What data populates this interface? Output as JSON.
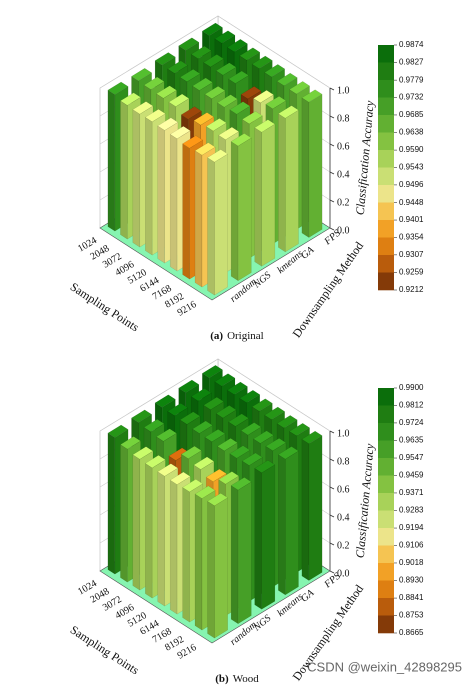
{
  "chart_data": [
    {
      "type": "bar3d",
      "panel": "(a)",
      "title": "Original",
      "x_label": "Sampling Points",
      "y_label": "Downsampling Method",
      "z_label": "Classification Accuracy",
      "categories": [
        "1024",
        "2048",
        "3072",
        "4096",
        "5120",
        "6144",
        "7168",
        "8192",
        "9216"
      ],
      "series": [
        {
          "name": "random",
          "values": [
            0.975,
            0.955,
            0.95,
            0.952,
            0.948,
            0.945,
            0.935,
            0.942,
            0.95
          ]
        },
        {
          "name": "NGS",
          "values": [
            0.97,
            0.965,
            0.96,
            0.958,
            0.925,
            0.94,
            0.955,
            0.95,
            0.962
          ]
        },
        {
          "name": "kmeans",
          "values": [
            0.98,
            0.978,
            0.975,
            0.97,
            0.968,
            0.965,
            0.972,
            0.96,
            0.958
          ]
        },
        {
          "name": "GA",
          "values": [
            0.982,
            0.98,
            0.978,
            0.976,
            0.974,
            0.921,
            0.95,
            0.965,
            0.955
          ]
        },
        {
          "name": "FPS",
          "values": [
            0.985,
            0.987,
            0.983,
            0.98,
            0.978,
            0.975,
            0.97,
            0.968,
            0.966
          ]
        }
      ],
      "zlim": [
        0,
        1
      ],
      "zticks": [
        {
          "value": 0,
          "label": "0.0"
        },
        0.2,
        0.4,
        0.6,
        0.8,
        {
          "value": 1,
          "label": "1.0"
        }
      ],
      "colorbar_ticks": [
        0.9874,
        0.9827,
        0.9779,
        0.9732,
        0.9685,
        0.9638,
        {
          "value": 0.959,
          "label": "0.9590"
        },
        0.9543,
        0.9496,
        0.9448,
        0.9401,
        0.9354,
        0.9307,
        0.9259,
        0.9212
      ],
      "colormap": [
        "#0b6e0b",
        "#1f7d12",
        "#2f8e1c",
        "#469f27",
        "#62b032",
        "#84c241",
        "#a8d259",
        "#cadf74",
        "#ece48a",
        "#f5c452",
        "#f2a126",
        "#de7f12",
        "#b95c0c",
        "#843a08"
      ]
    },
    {
      "type": "bar3d",
      "panel": "(b)",
      "title": "Wood",
      "x_label": "Sampling Points",
      "y_label": "Downsampling Method",
      "z_label": "Classification Accuracy",
      "categories": [
        "1024",
        "2048",
        "3072",
        "4096",
        "5120",
        "6144",
        "7168",
        "8192",
        "9216"
      ],
      "series": [
        {
          "name": "random",
          "values": [
            0.975,
            0.95,
            0.935,
            0.93,
            0.928,
            0.925,
            0.93,
            0.94,
            0.945
          ]
        },
        {
          "name": "NGS",
          "values": [
            0.98,
            0.97,
            0.96,
            0.88,
            0.95,
            0.93,
            0.9,
            0.94,
            0.955
          ]
        },
        {
          "name": "kmeans",
          "values": [
            0.985,
            0.982,
            0.978,
            0.97,
            0.968,
            0.96,
            0.965,
            0.97,
            0.975
          ]
        },
        {
          "name": "GA",
          "values": [
            0.988,
            0.985,
            0.98,
            0.978,
            0.975,
            0.97,
            0.968,
            0.972,
            0.97
          ]
        },
        {
          "name": "FPS",
          "values": [
            0.99,
            0.988,
            0.985,
            0.984,
            0.98,
            0.978,
            0.975,
            0.976,
            0.977
          ]
        }
      ],
      "zlim": [
        0,
        1
      ],
      "zticks": [
        {
          "value": 0,
          "label": "0.0"
        },
        0.2,
        0.4,
        0.6,
        0.8,
        {
          "value": 1,
          "label": "1.0"
        }
      ],
      "colorbar_ticks": [
        {
          "value": 0.99,
          "label": "0.9900"
        },
        0.9812,
        0.9724,
        0.9635,
        0.9547,
        0.9459,
        0.9371,
        0.9283,
        0.9194,
        0.9106,
        0.9018,
        {
          "value": 0.893,
          "label": "0.8930"
        },
        0.8841,
        0.8753,
        0.8665
      ],
      "colormap": [
        "#0b6e0b",
        "#1f7d12",
        "#2f8e1c",
        "#469f27",
        "#62b032",
        "#84c241",
        "#a8d259",
        "#cadf74",
        "#ece48a",
        "#f5c452",
        "#f2a126",
        "#de7f12",
        "#b95c0c",
        "#843a08"
      ]
    }
  ],
  "watermark": "CSDN @weixin_42898295"
}
